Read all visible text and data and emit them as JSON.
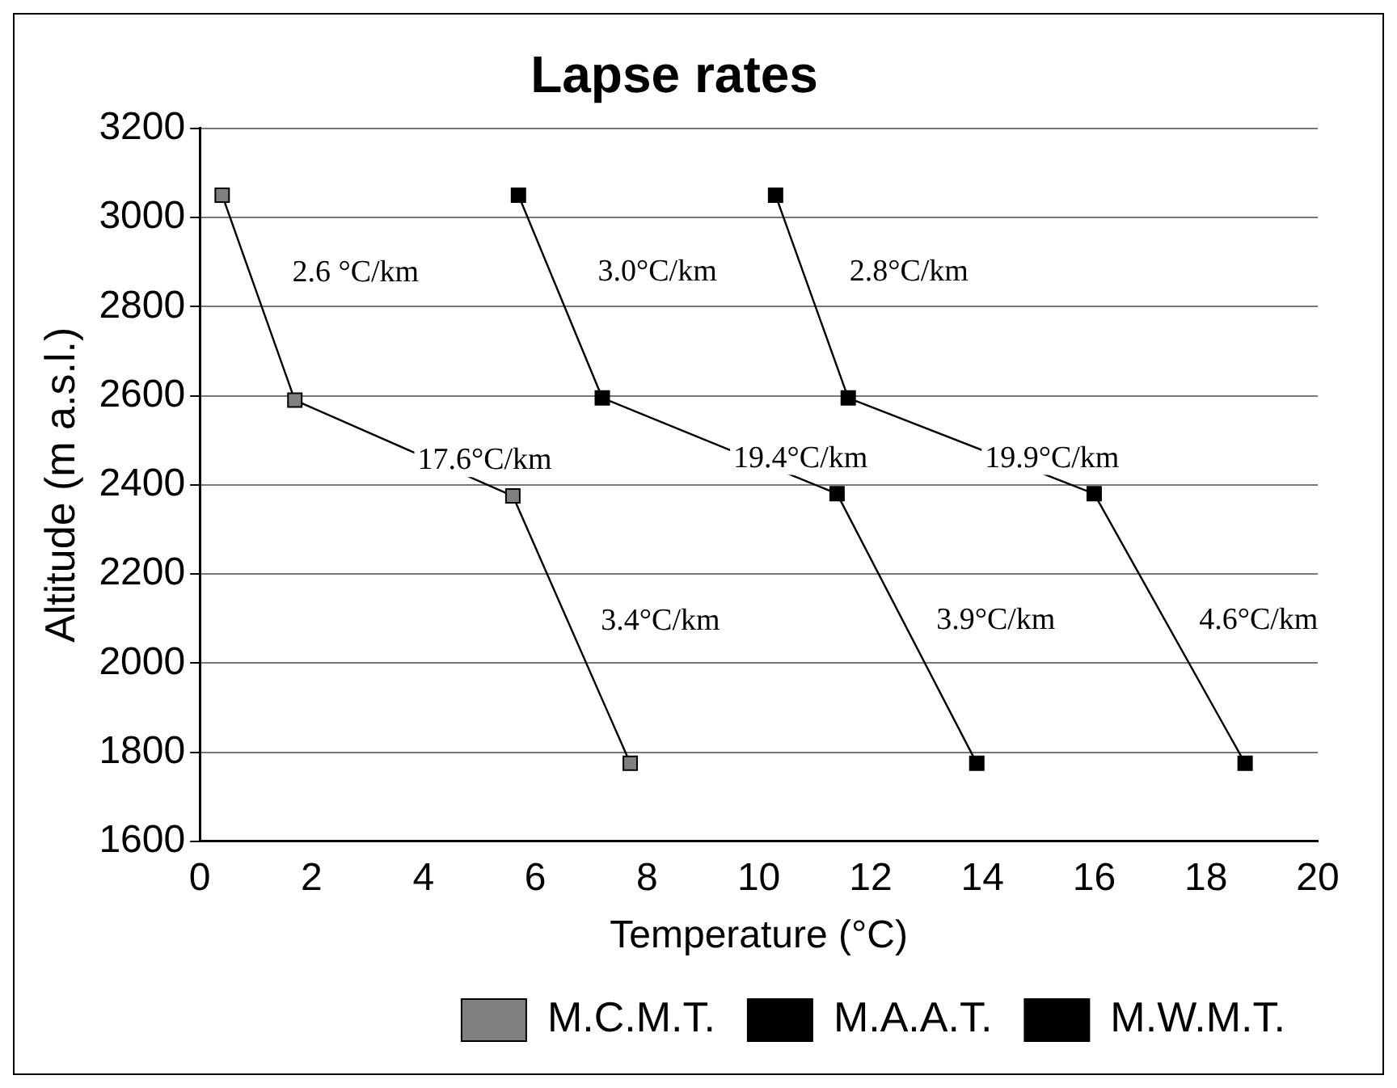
{
  "chart_data": {
    "type": "line",
    "title": "Lapse rates",
    "xlabel": "Temperature (°C)",
    "ylabel": "Altitude (m a.s.l.)",
    "xlim": [
      0,
      20
    ],
    "xticks": [
      0,
      2,
      4,
      6,
      8,
      10,
      12,
      14,
      16,
      18,
      20
    ],
    "ylim": [
      1600,
      3200
    ],
    "yticks": [
      1600,
      1800,
      2000,
      2200,
      2400,
      2600,
      2800,
      3000,
      3200
    ],
    "grid": "y",
    "legend": "bottom",
    "marker": "square",
    "line_style": "solid",
    "series": [
      {
        "name": "M.C.M.T.",
        "color": "#808080",
        "x": [
          0.4,
          1.7,
          5.6,
          7.7
        ],
        "values": [
          3050,
          2590,
          2375,
          1775
        ]
      },
      {
        "name": "M.A.A.T.",
        "color": "#000000",
        "x": [
          5.7,
          7.2,
          11.4,
          13.9
        ],
        "values": [
          3050,
          2595,
          2380,
          1775
        ]
      },
      {
        "name": "M.W.M.T.",
        "color": "#000000",
        "x": [
          10.3,
          11.6,
          16.0,
          18.7
        ],
        "values": [
          3050,
          2595,
          2380,
          1775
        ]
      }
    ],
    "annotations": [
      "2.6 °C/km",
      "3.0°C/km",
      "2.8°C/km",
      "17.6°C/km",
      "19.4°C/km",
      "19.9°C/km",
      "3.4°C/km",
      "3.9°C/km",
      "4.6°C/km"
    ]
  }
}
